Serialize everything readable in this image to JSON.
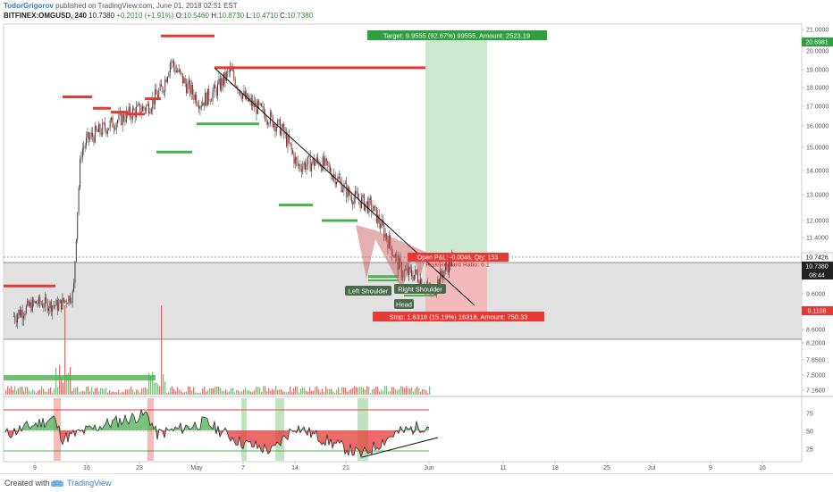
{
  "header": {
    "author": "TodorGrigorov",
    "published_text": "published on TradingView.com, June 01, 2018 02:51 EST",
    "symbol": "BITFINEX:OMGUSD, 240",
    "price": "10.7380",
    "change": "+0.2010 (+1.91%)",
    "ohlc_o_label": "O:",
    "ohlc_o": "10.5460",
    "ohlc_h_label": "H:",
    "ohlc_h": "10.8730",
    "ohlc_l_label": "L:",
    "ohlc_l": "10.4710",
    "ohlc_c_label": "C:",
    "ohlc_c": "10.7380"
  },
  "colors": {
    "bull": "#4caf50",
    "bear": "#e53935",
    "target_zone": "#c8e6c9",
    "stop_zone": "#f4b6b6",
    "gray_zone": "#dcdcdc",
    "pattern_fill": "#c0504d"
  },
  "annotations": {
    "target_label": "Target: 9.9555 (92.67%) 99555, Amount: 2523.19",
    "stop_label": "Stop: 1.6318 (15.19%) 16318, Amount: 750.33",
    "pl_label": "Open P&L: -0.0046, Qty: 153",
    "rr_label": "Risk/Reward Ratio: 6.1",
    "left_shoulder": "Left Shoulder",
    "head": "Head",
    "right_shoulder": "Right Shoulder"
  },
  "price_axis": {
    "ticks": [
      "21.0000",
      "20.0000",
      "19.0000",
      "18.0000",
      "17.0000",
      "16.0000",
      "15.0000",
      "14.0000",
      "13.0000",
      "12.0000",
      "11.4000",
      "9.6000",
      "9.0000",
      "8.6000",
      "8.2000",
      "7.8500",
      "7.5000",
      "7.1600"
    ],
    "target_badge": "20.6981",
    "price_badge_1": "10.7426",
    "price_badge_2": "10.7380",
    "price_badge_3": "08:44",
    "stop_badge": "9.1108"
  },
  "rsi_axis": {
    "ticks": [
      "75",
      "50",
      "25"
    ]
  },
  "time_axis": {
    "ticks": [
      "9",
      "16",
      "23",
      "May",
      "7",
      "14",
      "21",
      "Jun",
      "11",
      "18",
      "25",
      "Jul",
      "9",
      "16"
    ]
  },
  "footer": {
    "created_with": "Created with",
    "brand": "TradingView"
  },
  "chart_data": {
    "type": "candlestick",
    "symbol": "OMGUSD",
    "interval": "240",
    "series": [
      {
        "name": "close_4h",
        "x": [
          "Apr 3",
          "Apr 6",
          "Apr 9",
          "Apr 11",
          "Apr 12",
          "Apr 13",
          "Apr 16",
          "Apr 19",
          "Apr 21",
          "Apr 23",
          "Apr 24",
          "Apr 26",
          "Apr 28",
          "Apr 30",
          "May 2",
          "May 4",
          "May 7",
          "May 9",
          "May 11",
          "May 14",
          "May 16",
          "May 18",
          "May 21",
          "May 23",
          "May 25",
          "May 27",
          "May 29",
          "May 31",
          "Jun 1"
        ],
        "values": [
          8.9,
          9.3,
          9.2,
          9.6,
          14.8,
          15.4,
          16.1,
          16.7,
          17.0,
          18.0,
          19.5,
          18.2,
          17.2,
          17.8,
          18.9,
          17.4,
          16.5,
          15.8,
          14.2,
          14.4,
          13.8,
          13.0,
          12.5,
          11.4,
          10.3,
          10.2,
          9.6,
          10.5,
          10.74
        ]
      }
    ],
    "support_resistance_levels": {
      "red": [
        9.85,
        17.5,
        16.6,
        20.7,
        19.1
      ],
      "green": [
        14.8,
        16.1,
        12.6,
        12.0,
        10.15
      ]
    },
    "position": {
      "entry": 10.74,
      "target": 20.6981,
      "stop": 9.1108,
      "target_pct": "92.67%",
      "stop_pct": "15.19%"
    },
    "rsi": {
      "levels": [
        75,
        50,
        25
      ],
      "last": 55
    },
    "xlabel": "",
    "ylabel": ""
  }
}
